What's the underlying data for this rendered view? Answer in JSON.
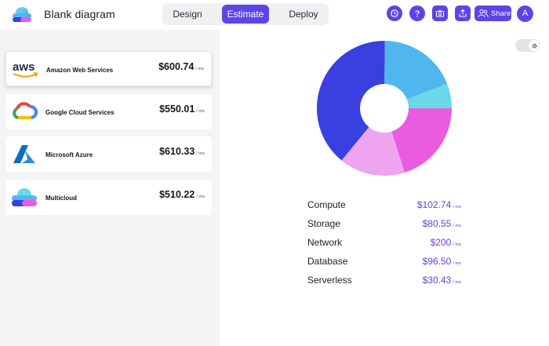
{
  "header": {
    "title": "Blank diagram",
    "tabs": [
      {
        "label": "Design"
      },
      {
        "label": "Estimate"
      },
      {
        "label": "Deploy"
      }
    ],
    "share_label": "Share",
    "avatar_initial": "A"
  },
  "providers": [
    {
      "name": "Amazon Web Services",
      "logo_text": "aws",
      "price": "$600.74",
      "unit": "/ mo",
      "selected": true
    },
    {
      "name": "Google Cloud Services",
      "price": "$550.01",
      "unit": "/ mo"
    },
    {
      "name": "Microsoft Azure",
      "price": "$610.33",
      "unit": "/ mo"
    },
    {
      "name": "Multicloud",
      "price": "$510.22",
      "unit": "/ mo"
    }
  ],
  "costs": [
    {
      "name": "Compute",
      "price": "$102.74",
      "unit": "/ mo"
    },
    {
      "name": "Storage",
      "price": "$80.55",
      "unit": "/ mo"
    },
    {
      "name": "Network",
      "price": "$200",
      "unit": "/ mo"
    },
    {
      "name": "Database",
      "price": "$96.50",
      "unit": "/ mo"
    },
    {
      "name": "Serverless",
      "price": "$30.43",
      "unit": "/ mo"
    }
  ],
  "chart_data": {
    "type": "pie",
    "values": [
      102.74,
      80.55,
      200,
      96.5,
      30.43
    ],
    "colors": [
      "#e95ce0",
      "#efa4ef",
      "#3a3fe0",
      "#4fb6ee",
      "#6ad8e6"
    ]
  },
  "colors": {
    "accent": "#5b45e8",
    "price_text": "#6b3fdc"
  },
  "icons": {
    "history": "history-icon",
    "help": "help-icon",
    "camera": "camera-icon",
    "export": "export-icon",
    "users": "users-icon",
    "settings": "gear-icon"
  }
}
